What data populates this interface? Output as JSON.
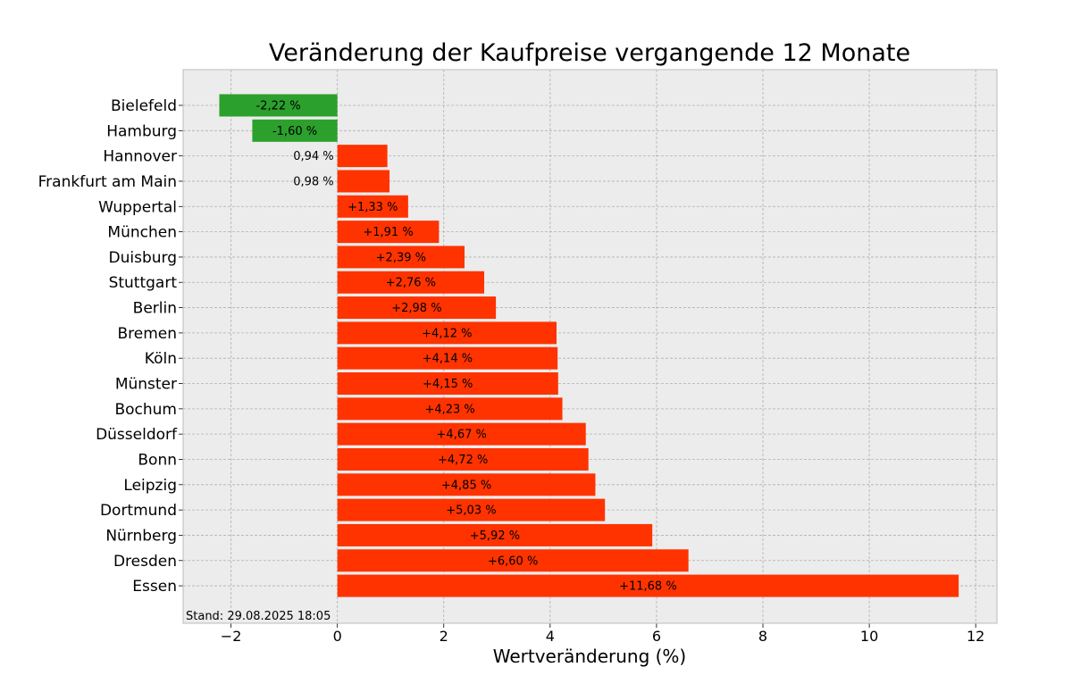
{
  "chart_data": {
    "type": "bar",
    "orientation": "horizontal",
    "title": "Veränderung der Kaufpreise vergangende 12 Monate",
    "xlabel": "Wertveränderung (%)",
    "ylabel": "",
    "xlim": [
      -2.9,
      12.4
    ],
    "xticks": [
      -2,
      0,
      2,
      4,
      6,
      8,
      10,
      12
    ],
    "xtick_labels": [
      "−2",
      "0",
      "2",
      "4",
      "6",
      "8",
      "10",
      "12"
    ],
    "grid": true,
    "categories": [
      "Bielefeld",
      "Hamburg",
      "Hannover",
      "Frankfurt am Main",
      "Wuppertal",
      "München",
      "Duisburg",
      "Stuttgart",
      "Berlin",
      "Bremen",
      "Köln",
      "Münster",
      "Bochum",
      "Düsseldorf",
      "Bonn",
      "Leipzig",
      "Dortmund",
      "Nürnberg",
      "Dresden",
      "Essen"
    ],
    "values": [
      -2.22,
      -1.6,
      0.94,
      0.98,
      1.33,
      1.91,
      2.39,
      2.76,
      2.98,
      4.12,
      4.14,
      4.15,
      4.23,
      4.67,
      4.72,
      4.85,
      5.03,
      5.92,
      6.6,
      11.68
    ],
    "data_labels": [
      "-2,22 %",
      "-1,60 %",
      "0,94 %",
      "0,98 %",
      "+1,33 %",
      "+1,91 %",
      "+2,39 %",
      "+2,76 %",
      "+2,98 %",
      "+4,12 %",
      "+4,14 %",
      "+4,15 %",
      "+4,23 %",
      "+4,67 %",
      "+4,72 %",
      "+4,85 %",
      "+5,03 %",
      "+5,92 %",
      "+6,60 %",
      "+11,68 %"
    ],
    "colors": {
      "negative": "#2ca02c",
      "positive": "#ff3300",
      "plot_background": "#ececec",
      "frame": "#bcbcbc"
    },
    "annotation": "Stand: 29.08.2025 18:05"
  }
}
